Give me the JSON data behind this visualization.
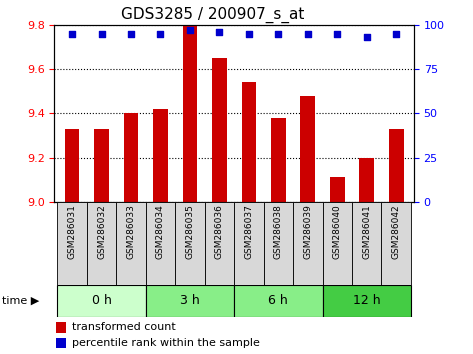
{
  "title": "GDS3285 / 200907_s_at",
  "samples": [
    "GSM286031",
    "GSM286032",
    "GSM286033",
    "GSM286034",
    "GSM286035",
    "GSM286036",
    "GSM286037",
    "GSM286038",
    "GSM286039",
    "GSM286040",
    "GSM286041",
    "GSM286042"
  ],
  "bar_values": [
    9.33,
    9.33,
    9.4,
    9.42,
    9.8,
    9.65,
    9.54,
    9.38,
    9.48,
    9.11,
    9.2,
    9.33
  ],
  "percentile_values": [
    95,
    95,
    95,
    95,
    97,
    96,
    95,
    95,
    95,
    95,
    93,
    95
  ],
  "bar_color": "#cc0000",
  "percentile_color": "#0000cc",
  "ylim_left": [
    9.0,
    9.8
  ],
  "ylim_right": [
    0,
    100
  ],
  "yticks_left": [
    9.0,
    9.2,
    9.4,
    9.6,
    9.8
  ],
  "yticks_right": [
    0,
    25,
    50,
    75,
    100
  ],
  "groups": [
    {
      "label": "0 h",
      "start": 0,
      "end": 3,
      "color": "#ccffcc"
    },
    {
      "label": "3 h",
      "start": 3,
      "end": 6,
      "color": "#88ee88"
    },
    {
      "label": "6 h",
      "start": 6,
      "end": 9,
      "color": "#88ee88"
    },
    {
      "label": "12 h",
      "start": 9,
      "end": 12,
      "color": "#44cc44"
    }
  ],
  "bar_width": 0.5,
  "background_color": "#ffffff",
  "title_fontsize": 11,
  "tick_fontsize": 8,
  "label_fontsize": 9,
  "legend_fontsize": 8,
  "xticklabel_bg": "#d8d8d8",
  "xticklabel_fontsize": 6.5
}
